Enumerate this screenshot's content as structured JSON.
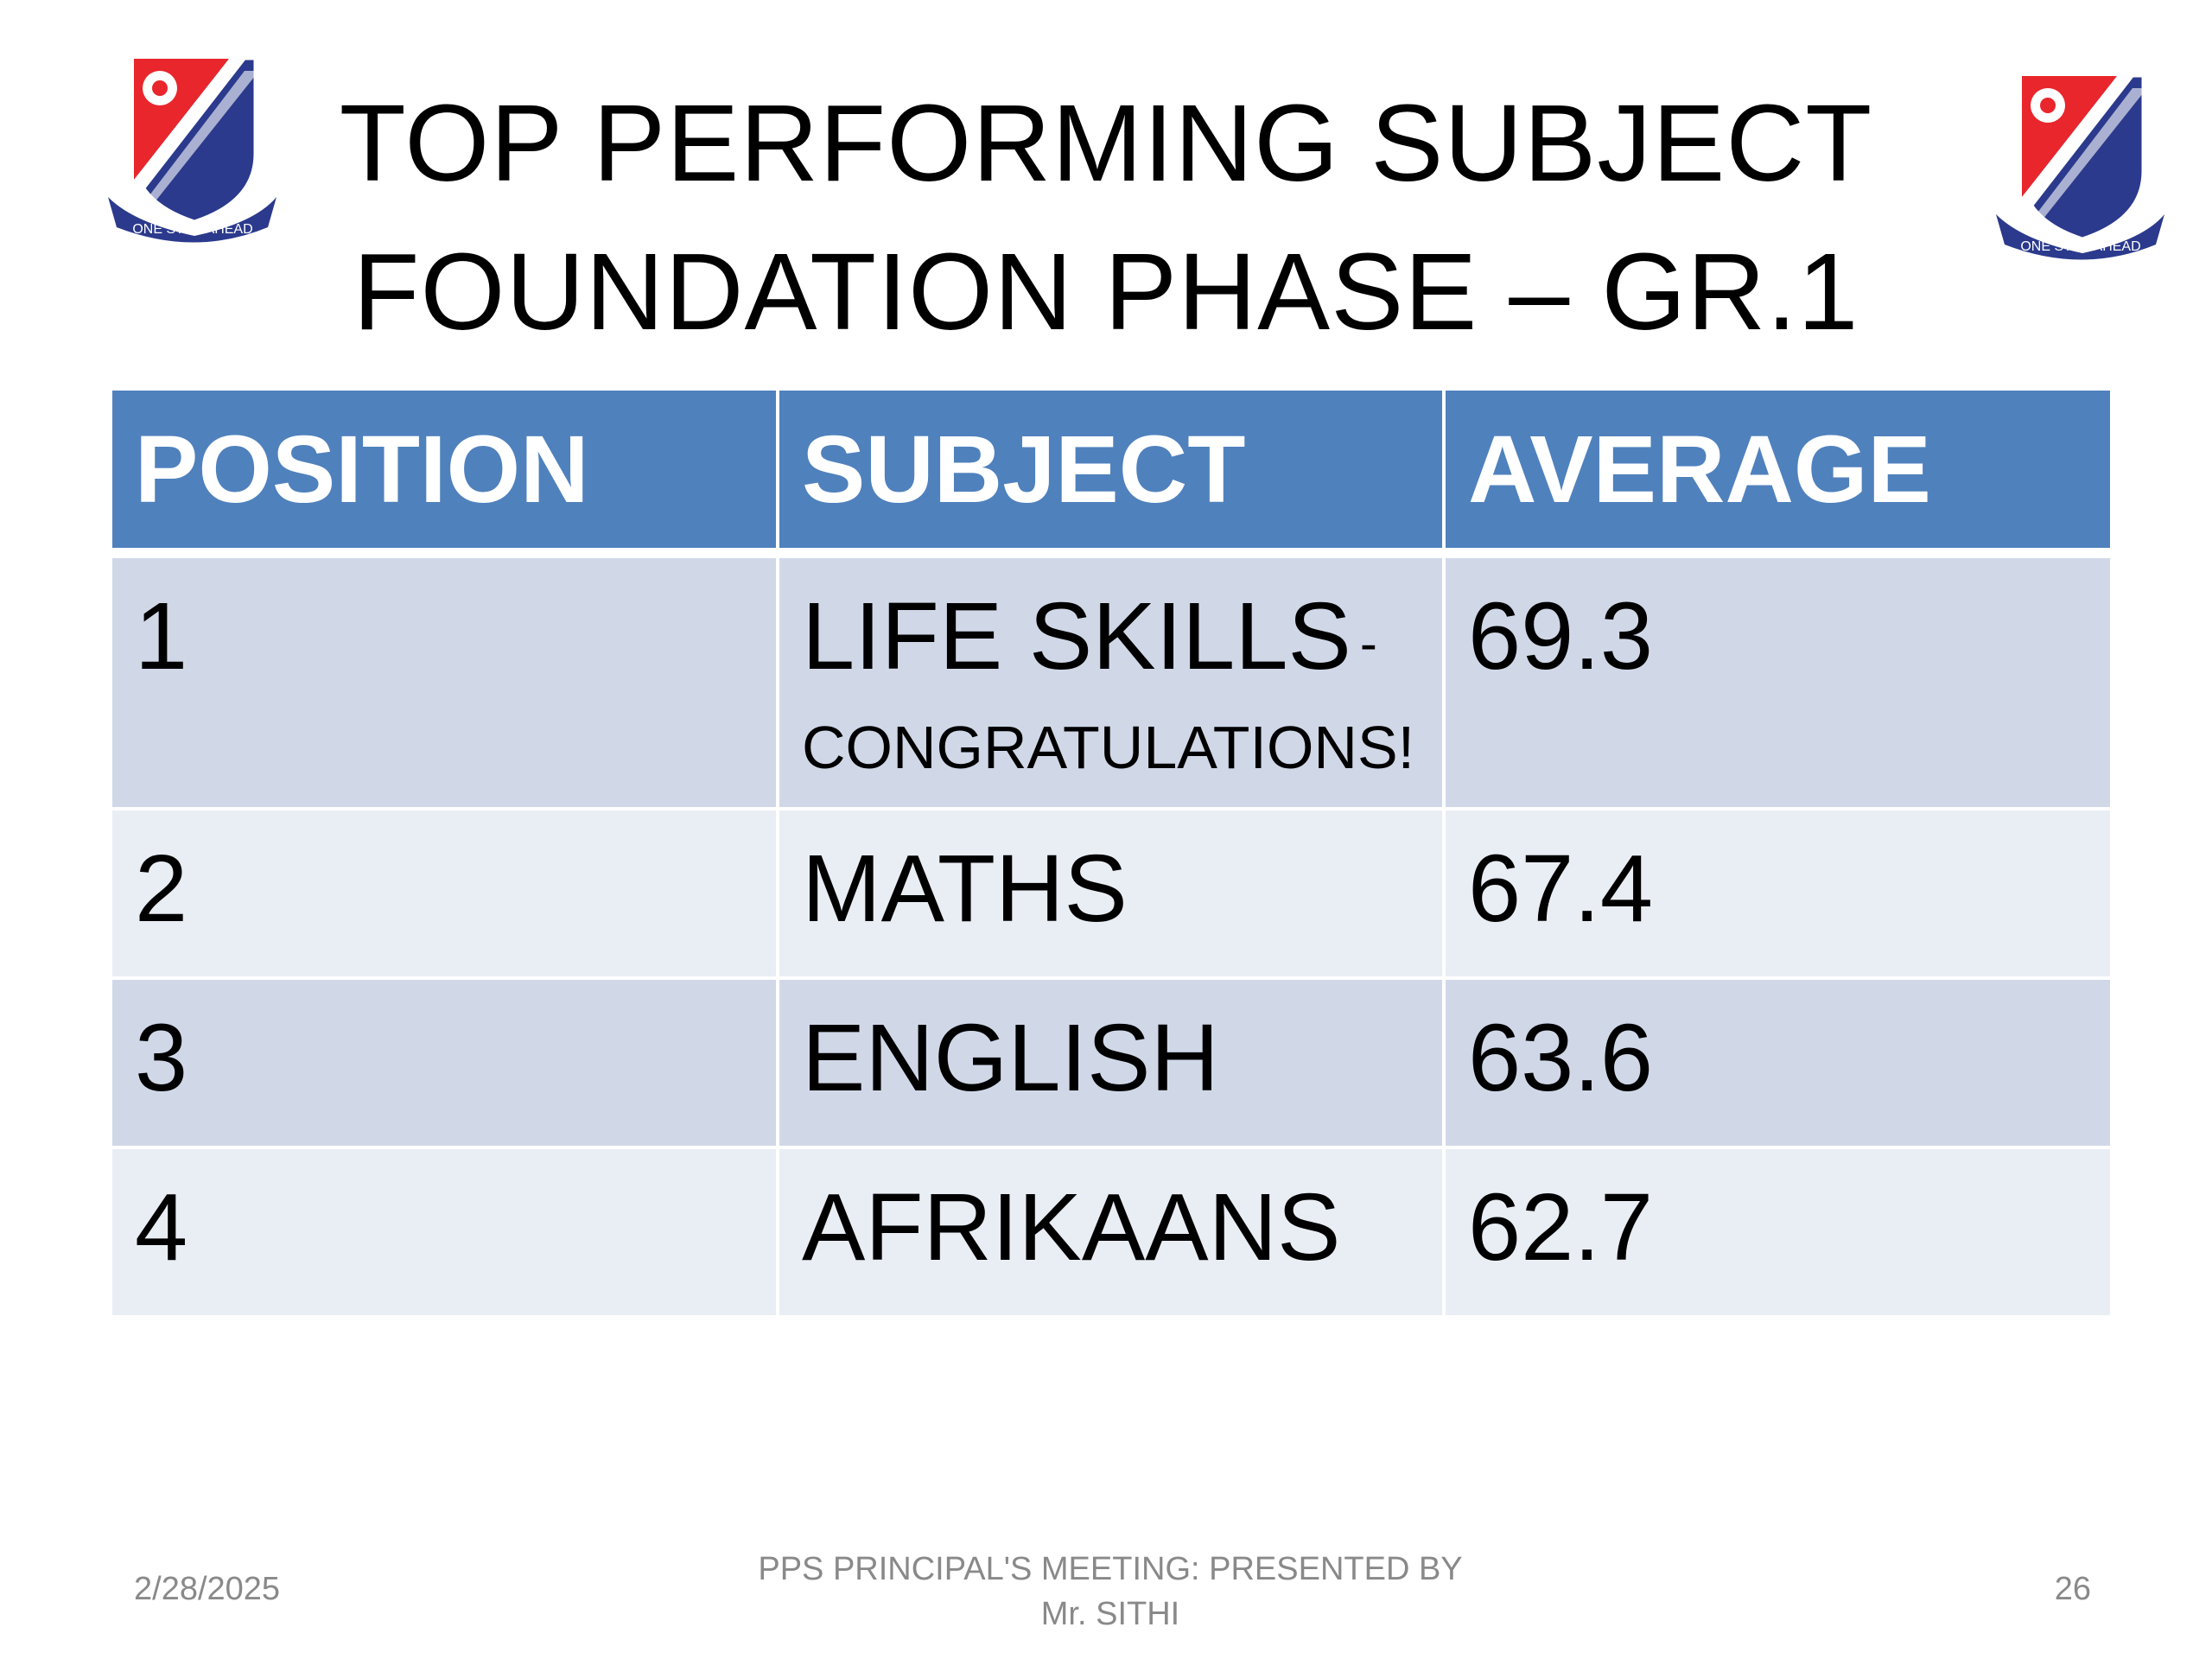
{
  "slide": {
    "title_line1": "TOP  PERFORMING  SUBJECT",
    "title_line2": "FOUNDATION  PHASE – GR.1",
    "crest_motto": "ONE STEP AHEAD"
  },
  "table": {
    "headers": [
      "POSITION",
      "SUBJECT",
      "AVERAGE"
    ],
    "rows": [
      {
        "position": "1",
        "subject": "LIFE SKILLS",
        "subject_suffix": "-",
        "subject_note": "CONGRATULATIONS!",
        "average": "69.3"
      },
      {
        "position": "2",
        "subject": "MATHS",
        "average": "67.4"
      },
      {
        "position": "3",
        "subject": "ENGLISH",
        "average": "63.6"
      },
      {
        "position": "4",
        "subject": "AFRIKAANS",
        "average": "62.7"
      }
    ]
  },
  "colors": {
    "header_bg": "#4f81bd",
    "row_odd_bg": "#d0d8e8",
    "row_even_bg": "#e9edf4",
    "footer_text": "#898989",
    "crest_red": "#e8262c",
    "crest_blue": "#2b3a8c"
  },
  "footer": {
    "date": "2/28/2025",
    "center_line1": "PPS  PRINCIPAL'S MEETING: PRESENTED  BY",
    "center_line2": "Mr. SITHI",
    "page_number": "26"
  }
}
